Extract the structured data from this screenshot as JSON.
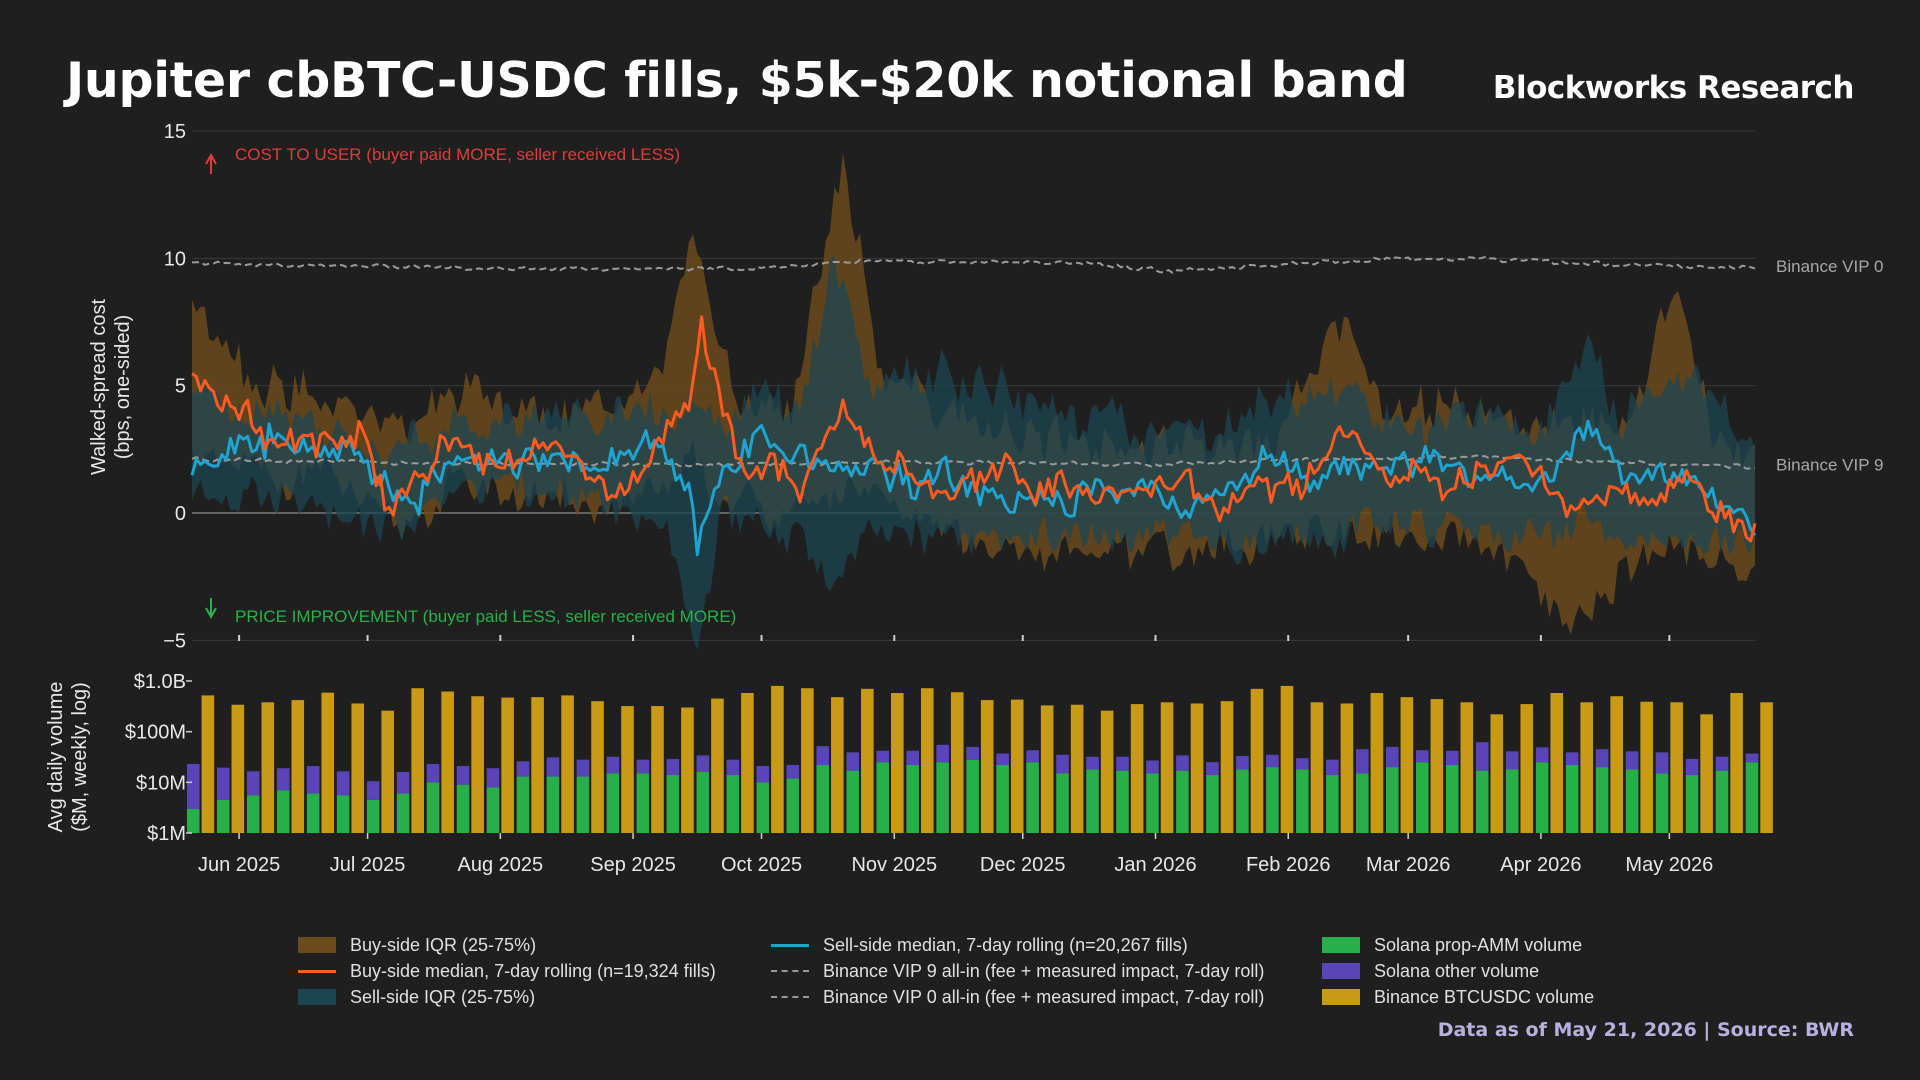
{
  "header": {
    "title": "Jupiter cbBTC-USDC fills, $5k-$20k notional band",
    "brand": "Blockworks Research",
    "footer": "Data as of May 21, 2026 | Source: BWR"
  },
  "colors": {
    "background": "#1f1f1f",
    "buy_median": "#ff5a1f",
    "buy_iqr": "#6b4a1c",
    "sell_median": "#1fa3d0",
    "sell_iqr": "#1c4552",
    "binance_ref": "#9a9a9a",
    "solana_prop_amm": "#27b04a",
    "solana_other": "#5a45b8",
    "binance_btcusdc": "#c99a16",
    "cost_annotation": "#e03c3c",
    "improvement_annotation": "#2bb04a"
  },
  "chart_data": [
    {
      "type": "line",
      "ylabel": "Walked-spread cost\n(bps, one-sided)",
      "ylim": [
        -5,
        15
      ],
      "yticks": [
        "15",
        "10",
        "5",
        "0",
        "−5"
      ],
      "ytick_values": [
        15,
        10,
        5,
        0,
        -5
      ],
      "x_range": [
        "2025-05-21",
        "2026-05-21"
      ],
      "grid": true,
      "annotations": {
        "cost": "COST TO USER (buyer paid MORE, seller received LESS)",
        "improvement": "PRICE IMPROVEMENT (buyer paid LESS, seller received MORE)"
      },
      "reference_lines": [
        {
          "name": "Binance VIP 0",
          "value": 9.7
        },
        {
          "name": "Binance VIP 9",
          "value": 1.9
        }
      ],
      "buy_median_anchors": [
        [
          "2025-05-21",
          5.0
        ],
        [
          "2025-05-26",
          4.6
        ],
        [
          "2025-06-01",
          4.3
        ],
        [
          "2025-06-05",
          3.2
        ],
        [
          "2025-06-08",
          2.4
        ],
        [
          "2025-06-15",
          3.0
        ],
        [
          "2025-06-22",
          2.6
        ],
        [
          "2025-06-29",
          3.4
        ],
        [
          "2025-07-03",
          1.2
        ],
        [
          "2025-07-07",
          0.3
        ],
        [
          "2025-07-14",
          1.3
        ],
        [
          "2025-07-21",
          3.1
        ],
        [
          "2025-07-28",
          2.0
        ],
        [
          "2025-08-07",
          2.0
        ],
        [
          "2025-08-14",
          2.6
        ],
        [
          "2025-08-21",
          1.5
        ],
        [
          "2025-08-28",
          1.0
        ],
        [
          "2025-09-04",
          2.2
        ],
        [
          "2025-09-09",
          3.4
        ],
        [
          "2025-09-14",
          4.3
        ],
        [
          "2025-09-17",
          7.3
        ],
        [
          "2025-09-20",
          5.2
        ],
        [
          "2025-09-23",
          3.3
        ],
        [
          "2025-09-26",
          1.8
        ],
        [
          "2025-10-03",
          2.1
        ],
        [
          "2025-10-10",
          1.0
        ],
        [
          "2025-10-15",
          2.6
        ],
        [
          "2025-10-20",
          4.6
        ],
        [
          "2025-10-25",
          3.0
        ],
        [
          "2025-10-30",
          2.2
        ],
        [
          "2025-11-06",
          1.3
        ],
        [
          "2025-11-13",
          0.3
        ],
        [
          "2025-11-20",
          1.2
        ],
        [
          "2025-11-27",
          2.1
        ],
        [
          "2025-12-04",
          0.6
        ],
        [
          "2025-12-11",
          1.0
        ],
        [
          "2025-12-18",
          0.8
        ],
        [
          "2025-12-25",
          0.7
        ],
        [
          "2026-01-01",
          0.9
        ],
        [
          "2026-01-08",
          1.2
        ],
        [
          "2026-01-15",
          0.3
        ],
        [
          "2026-01-22",
          0.6
        ],
        [
          "2026-01-29",
          1.1
        ],
        [
          "2026-02-05",
          1.2
        ],
        [
          "2026-02-12",
          2.7
        ],
        [
          "2026-02-17",
          3.4
        ],
        [
          "2026-02-24",
          1.2
        ],
        [
          "2026-03-03",
          2.0
        ],
        [
          "2026-03-10",
          0.4
        ],
        [
          "2026-03-17",
          1.9
        ],
        [
          "2026-03-24",
          2.1
        ],
        [
          "2026-03-31",
          1.6
        ],
        [
          "2026-04-07",
          0.2
        ],
        [
          "2026-04-14",
          0.6
        ],
        [
          "2026-04-21",
          1.0
        ],
        [
          "2026-04-28",
          0.2
        ],
        [
          "2026-05-05",
          1.8
        ],
        [
          "2026-05-12",
          0.0
        ],
        [
          "2026-05-21",
          -0.8
        ]
      ],
      "sell_median_anchors": [
        [
          "2025-05-21",
          1.8
        ],
        [
          "2025-06-01",
          2.6
        ],
        [
          "2025-06-08",
          2.8
        ],
        [
          "2025-06-15",
          2.3
        ],
        [
          "2025-06-22",
          2.6
        ],
        [
          "2025-06-29",
          2.3
        ],
        [
          "2025-07-07",
          0.6
        ],
        [
          "2025-07-14",
          0.7
        ],
        [
          "2025-07-21",
          2.4
        ],
        [
          "2025-07-28",
          2.2
        ],
        [
          "2025-08-07",
          2.0
        ],
        [
          "2025-08-14",
          2.2
        ],
        [
          "2025-08-21",
          1.7
        ],
        [
          "2025-08-28",
          2.4
        ],
        [
          "2025-09-04",
          2.9
        ],
        [
          "2025-09-09",
          2.0
        ],
        [
          "2025-09-14",
          0.5
        ],
        [
          "2025-09-16",
          -1.6
        ],
        [
          "2025-09-19",
          0.0
        ],
        [
          "2025-09-23",
          1.8
        ],
        [
          "2025-10-01",
          3.0
        ],
        [
          "2025-10-08",
          2.4
        ],
        [
          "2025-10-15",
          1.6
        ],
        [
          "2025-10-20",
          2.0
        ],
        [
          "2025-10-28",
          1.8
        ],
        [
          "2025-11-06",
          1.0
        ],
        [
          "2025-11-13",
          1.6
        ],
        [
          "2025-11-20",
          0.6
        ],
        [
          "2025-11-27",
          0.5
        ],
        [
          "2025-12-04",
          0.4
        ],
        [
          "2025-12-11",
          0.5
        ],
        [
          "2025-12-18",
          0.9
        ],
        [
          "2025-12-25",
          0.8
        ],
        [
          "2026-01-01",
          1.0
        ],
        [
          "2026-01-08",
          0.1
        ],
        [
          "2026-01-15",
          1.0
        ],
        [
          "2026-01-22",
          1.6
        ],
        [
          "2026-01-29",
          2.4
        ],
        [
          "2026-02-05",
          1.2
        ],
        [
          "2026-02-12",
          1.9
        ],
        [
          "2026-02-19",
          1.6
        ],
        [
          "2026-02-26",
          1.8
        ],
        [
          "2026-03-05",
          2.2
        ],
        [
          "2026-03-12",
          1.7
        ],
        [
          "2026-03-19",
          1.5
        ],
        [
          "2026-03-26",
          1.3
        ],
        [
          "2026-04-02",
          1.2
        ],
        [
          "2026-04-09",
          2.6
        ],
        [
          "2026-04-14",
          3.4
        ],
        [
          "2026-04-20",
          1.3
        ],
        [
          "2026-04-28",
          1.4
        ],
        [
          "2026-05-05",
          1.3
        ],
        [
          "2026-05-12",
          0.6
        ],
        [
          "2026-05-21",
          -0.4
        ]
      ],
      "buy_iqr_anchors": [
        [
          "2025-05-21",
          2.0,
          8.0
        ],
        [
          "2025-06-01",
          2.0,
          6.0
        ],
        [
          "2025-06-08",
          1.5,
          5.0
        ],
        [
          "2025-06-22",
          1.5,
          4.5
        ],
        [
          "2025-07-07",
          -0.5,
          3.0
        ],
        [
          "2025-07-21",
          1.0,
          4.5
        ],
        [
          "2025-08-14",
          0.5,
          3.5
        ],
        [
          "2025-08-28",
          0.0,
          4.0
        ],
        [
          "2025-09-09",
          1.0,
          6.5
        ],
        [
          "2025-09-15",
          2.0,
          11.0
        ],
        [
          "2025-09-20",
          1.0,
          7.0
        ],
        [
          "2025-09-26",
          0.5,
          4.5
        ],
        [
          "2025-10-08",
          0.0,
          4.0
        ],
        [
          "2025-10-20",
          1.0,
          14.0
        ],
        [
          "2025-10-28",
          0.5,
          6.0
        ],
        [
          "2025-11-10",
          -0.5,
          4.0
        ],
        [
          "2025-12-01",
          -1.5,
          3.0
        ],
        [
          "2026-01-08",
          -1.5,
          2.5
        ],
        [
          "2026-01-29",
          -1.0,
          3.0
        ],
        [
          "2026-02-15",
          -0.5,
          8.0
        ],
        [
          "2026-02-24",
          -1.0,
          4.0
        ],
        [
          "2026-03-19",
          -1.0,
          4.0
        ],
        [
          "2026-04-08",
          -5.0,
          3.5
        ],
        [
          "2026-04-21",
          -2.0,
          3.5
        ],
        [
          "2026-05-02",
          -1.5,
          8.5
        ],
        [
          "2026-05-12",
          -2.0,
          3.0
        ],
        [
          "2026-05-21",
          -2.5,
          2.5
        ]
      ],
      "sell_iqr_anchors": [
        [
          "2025-05-21",
          1.0,
          4.5
        ],
        [
          "2025-06-08",
          1.0,
          4.0
        ],
        [
          "2025-07-07",
          -0.5,
          2.5
        ],
        [
          "2025-07-21",
          1.0,
          3.5
        ],
        [
          "2025-08-28",
          0.5,
          4.0
        ],
        [
          "2025-09-09",
          -1.0,
          4.0
        ],
        [
          "2025-09-16",
          -5.0,
          4.0
        ],
        [
          "2025-09-22",
          0.0,
          4.0
        ],
        [
          "2025-10-10",
          -1.0,
          4.5
        ],
        [
          "2025-10-18",
          -2.5,
          10.0
        ],
        [
          "2025-10-25",
          -1.0,
          5.0
        ],
        [
          "2025-11-13",
          -1.0,
          5.5
        ],
        [
          "2025-12-11",
          -1.0,
          4.0
        ],
        [
          "2026-01-08",
          -1.0,
          3.0
        ],
        [
          "2026-02-05",
          -1.0,
          5.0
        ],
        [
          "2026-03-05",
          -0.5,
          3.5
        ],
        [
          "2026-04-01",
          -1.0,
          3.5
        ],
        [
          "2026-04-12",
          0.0,
          7.0
        ],
        [
          "2026-04-20",
          -1.0,
          3.5
        ],
        [
          "2026-05-06",
          -1.0,
          6.0
        ],
        [
          "2026-05-21",
          -1.5,
          2.0
        ]
      ],
      "vip0_anchors": [
        [
          "2025-05-21",
          9.8
        ],
        [
          "2025-08-01",
          9.6
        ],
        [
          "2025-10-01",
          9.6
        ],
        [
          "2025-10-20",
          9.9
        ],
        [
          "2025-12-15",
          9.8
        ],
        [
          "2026-01-05",
          9.5
        ],
        [
          "2026-02-15",
          9.9
        ],
        [
          "2026-03-15",
          10.0
        ],
        [
          "2026-04-15",
          9.8
        ],
        [
          "2026-05-21",
          9.6
        ]
      ],
      "vip9_anchors": [
        [
          "2025-05-21",
          2.1
        ],
        [
          "2025-07-01",
          2.0
        ],
        [
          "2025-09-01",
          1.9
        ],
        [
          "2025-11-01",
          2.0
        ],
        [
          "2026-01-01",
          1.9
        ],
        [
          "2026-02-01",
          2.1
        ],
        [
          "2026-03-15",
          2.2
        ],
        [
          "2026-04-15",
          2.0
        ],
        [
          "2026-05-21",
          1.8
        ]
      ]
    },
    {
      "type": "bar",
      "stacked": true,
      "log_scale": true,
      "ylabel": "Avg daily volume\n($M, weekly, log)",
      "yticks": [
        "$1.0B",
        "$100M",
        "$10M",
        "$1M"
      ],
      "ytick_values": [
        1000,
        100,
        10,
        1
      ],
      "xticks": [
        "Jun 2025",
        "Jul 2025",
        "Aug 2025",
        "Sep 2025",
        "Oct 2025",
        "Nov 2025",
        "Dec 2025",
        "Jan 2026",
        "Feb 2026",
        "Mar 2026",
        "Apr 2026",
        "May 2026"
      ],
      "xtick_dates": [
        "2025-06-01",
        "2025-07-01",
        "2025-08-01",
        "2025-09-01",
        "2025-10-01",
        "2025-11-01",
        "2025-12-01",
        "2026-01-01",
        "2026-02-01",
        "2026-03-01",
        "2026-04-01",
        "2026-05-01"
      ],
      "weeks": 53,
      "start_date": "2025-05-23",
      "solana_prop_amm_musd": [
        3,
        4.5,
        5.5,
        7,
        6,
        5.5,
        4.5,
        6,
        10,
        9,
        8,
        13,
        13,
        13,
        15,
        15,
        14,
        16,
        14,
        10,
        12,
        22,
        17,
        25,
        22,
        25,
        28,
        22,
        25,
        15,
        18,
        17,
        15,
        17,
        14,
        18,
        20,
        18,
        14,
        15,
        20,
        25,
        22,
        17,
        18,
        25,
        22,
        20,
        18,
        15,
        14,
        17,
        25
      ],
      "solana_other_musd": [
        20,
        15,
        11,
        12,
        15,
        11,
        6,
        10,
        13,
        12,
        11,
        13,
        18,
        15,
        17,
        13,
        15,
        18,
        14,
        11,
        10,
        30,
        22,
        17,
        20,
        30,
        22,
        15,
        18,
        20,
        14,
        15,
        12,
        17,
        11,
        15,
        15,
        12,
        14,
        30,
        30,
        18,
        20,
        45,
        23,
        24,
        17,
        25,
        23,
        24,
        15,
        15,
        12
      ],
      "binance_btcusdc_musd": [
        520,
        340,
        380,
        420,
        590,
        360,
        260,
        720,
        620,
        500,
        470,
        480,
        520,
        400,
        320,
        320,
        300,
        450,
        580,
        800,
        720,
        480,
        700,
        580,
        720,
        600,
        420,
        430,
        330,
        340,
        260,
        350,
        380,
        360,
        400,
        700,
        800,
        380,
        360,
        580,
        480,
        440,
        380,
        220,
        350,
        580,
        380,
        500,
        390,
        380,
        220,
        580,
        380
      ]
    }
  ],
  "legend": [
    {
      "label": "Buy-side IQR (25-75%)",
      "kind": "patch",
      "color_key": "buy_iqr"
    },
    {
      "label": "Buy-side median, 7-day rolling (n=19,324 fills)",
      "kind": "line",
      "color_key": "buy_median"
    },
    {
      "label": "Sell-side IQR (25-75%)",
      "kind": "patch",
      "color_key": "sell_iqr"
    },
    {
      "label": "Sell-side median, 7-day rolling (n=20,267 fills)",
      "kind": "line",
      "color_key": "sell_median"
    },
    {
      "label": "Binance VIP 9 all-in (fee + measured impact, 7-day roll)",
      "kind": "dash",
      "color_key": "binance_ref"
    },
    {
      "label": "Binance VIP 0 all-in (fee + measured impact, 7-day roll)",
      "kind": "dash",
      "color_key": "binance_ref"
    },
    {
      "label": "Solana prop-AMM volume",
      "kind": "patch",
      "color_key": "solana_prop_amm"
    },
    {
      "label": "Solana other volume",
      "kind": "patch",
      "color_key": "solana_other"
    },
    {
      "label": "Binance BTCUSDC volume",
      "kind": "patch",
      "color_key": "binance_btcusdc"
    }
  ]
}
